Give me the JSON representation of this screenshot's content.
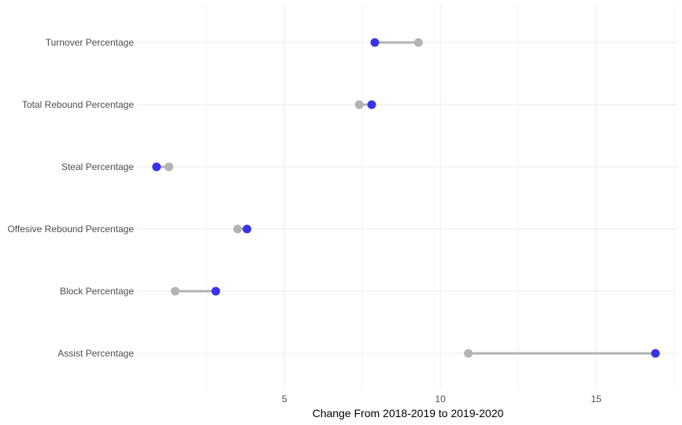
{
  "chart_data": {
    "type": "dumbbell",
    "title": "",
    "xlabel": "Change From 2018-2019 to 2019-2020",
    "ylabel": "",
    "xlim": [
      0.3,
      17.6
    ],
    "xticks": [
      5,
      10,
      15
    ],
    "grid": true,
    "legend": "none",
    "categories": [
      "Assist Percentage",
      "Block Percentage",
      "Offesive Rebound Percentage",
      "Steal Percentage",
      "Total Rebound Percentage",
      "Turnover Percentage"
    ],
    "series": [
      {
        "color": "#b3b3b3",
        "values": [
          10.9,
          1.5,
          3.5,
          1.3,
          7.4,
          9.3
        ]
      },
      {
        "color": "#3a33e6",
        "values": [
          16.9,
          2.8,
          3.8,
          0.9,
          7.8,
          7.9
        ]
      }
    ]
  }
}
